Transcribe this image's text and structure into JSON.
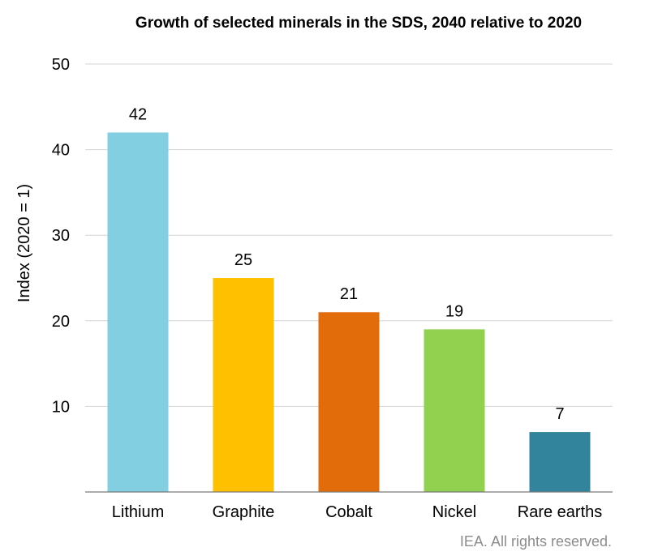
{
  "chart_data": {
    "type": "bar",
    "title": "Growth of selected minerals in the SDS, 2040 relative to 2020",
    "ylabel": "Index (2020 = 1)",
    "xlabel": "",
    "ylim": [
      0,
      50
    ],
    "yticks": [
      10,
      20,
      30,
      40,
      50
    ],
    "grid": true,
    "categories": [
      "Lithium",
      "Graphite",
      "Cobalt",
      "Nickel",
      "Rare earths"
    ],
    "values": [
      42,
      25,
      21,
      19,
      7
    ],
    "data_labels": [
      "42",
      "25",
      "21",
      "19",
      "7"
    ],
    "colors": [
      "#82cfe2",
      "#ffc000",
      "#e36c0a",
      "#92d050",
      "#31849b"
    ]
  },
  "credit": "IEA. All rights reserved."
}
